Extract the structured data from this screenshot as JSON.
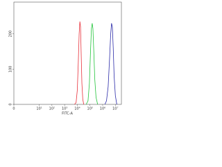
{
  "chart_data": {
    "type": "line",
    "x_label": "FITC-A",
    "xscale": "biexponential",
    "xlim": [
      0,
      30000000
    ],
    "xticks": [
      0,
      {
        "value": 10,
        "label": "10¹"
      },
      {
        "value": 100,
        "label": "10²"
      },
      {
        "value": 1000,
        "label": "10³"
      },
      {
        "value": 10000,
        "label": "10⁴"
      },
      {
        "value": 100000,
        "label": "10⁵"
      },
      {
        "value": 1000000,
        "label": "10⁶"
      },
      {
        "value": 10000000,
        "label": "10⁷"
      }
    ],
    "ylim": [
      0,
      290
    ],
    "yticks": [
      0,
      100,
      200
    ],
    "series": [
      {
        "name": "red",
        "color": "#e8303a",
        "x": [
          6000,
          8000,
          10000,
          12000,
          14000,
          16000,
          18000,
          20000,
          23000,
          27000,
          32000
        ],
        "values": [
          0,
          5,
          40,
          120,
          200,
          235,
          220,
          150,
          60,
          15,
          0
        ]
      },
      {
        "name": "green",
        "color": "#22c43a",
        "x": [
          50000,
          70000,
          90000,
          110000,
          130000,
          150000,
          170000,
          200000,
          240000,
          300000,
          400000
        ],
        "values": [
          0,
          10,
          60,
          150,
          215,
          230,
          215,
          150,
          70,
          20,
          0
        ]
      },
      {
        "name": "blue",
        "color": "#2a2aa8",
        "x": [
          1500000,
          2000000,
          2700000,
          3500000,
          4300000,
          5000000,
          5800000,
          6800000,
          8000000,
          10000000,
          13000000
        ],
        "values": [
          0,
          10,
          50,
          130,
          200,
          230,
          220,
          160,
          80,
          25,
          0
        ]
      }
    ]
  }
}
